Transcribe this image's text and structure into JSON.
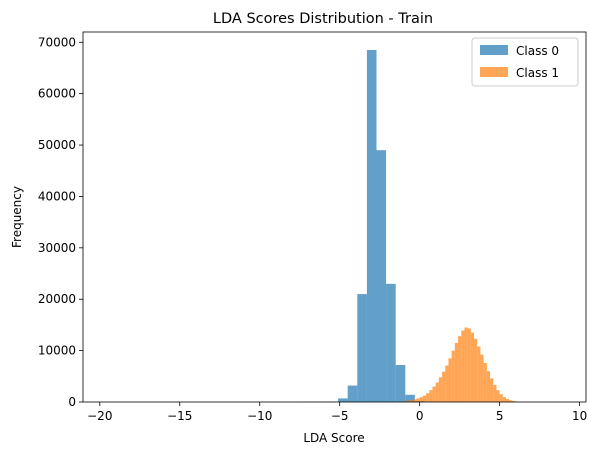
{
  "chart_data": {
    "type": "histogram",
    "title": "LDA Scores Distribution - Train",
    "xlabel": "LDA Score",
    "ylabel": "Frequency",
    "xlim": [
      -21.05,
      10.4
    ],
    "ylim": [
      0,
      72000
    ],
    "xticks": [
      -20,
      -15,
      -10,
      -5,
      0,
      5,
      10
    ],
    "yticks": [
      0,
      10000,
      20000,
      30000,
      40000,
      50000,
      60000,
      70000
    ],
    "legend_position": "top-right",
    "grid": false,
    "series": [
      {
        "name": "Class 0",
        "color": "#1f77b4",
        "alpha": 0.7,
        "bins": [
          {
            "x0": -20.0,
            "x1": -19.4,
            "count": 5
          },
          {
            "x0": -7.3,
            "x1": -5.1,
            "count": 60
          },
          {
            "x0": -5.1,
            "x1": -4.5,
            "count": 700
          },
          {
            "x0": -4.5,
            "x1": -3.9,
            "count": 3200
          },
          {
            "x0": -3.9,
            "x1": -3.3,
            "count": 21000
          },
          {
            "x0": -3.3,
            "x1": -2.7,
            "count": 68500
          },
          {
            "x0": -2.7,
            "x1": -2.1,
            "count": 49000
          },
          {
            "x0": -2.1,
            "x1": -1.5,
            "count": 23000
          },
          {
            "x0": -1.5,
            "x1": -0.9,
            "count": 7200
          },
          {
            "x0": -0.9,
            "x1": -0.3,
            "count": 1400
          },
          {
            "x0": -0.3,
            "x1": 0.3,
            "count": 200
          }
        ]
      },
      {
        "name": "Class 1",
        "color": "#ff7f0e",
        "alpha": 0.7,
        "bins": [
          {
            "x0": -1.6,
            "x1": -1.4,
            "count": 30
          },
          {
            "x0": -1.4,
            "x1": -1.2,
            "count": 60
          },
          {
            "x0": -1.2,
            "x1": -1.0,
            "count": 100
          },
          {
            "x0": -1.0,
            "x1": -0.8,
            "count": 170
          },
          {
            "x0": -0.8,
            "x1": -0.6,
            "count": 260
          },
          {
            "x0": -0.6,
            "x1": -0.4,
            "count": 380
          },
          {
            "x0": -0.4,
            "x1": -0.2,
            "count": 520
          },
          {
            "x0": -0.2,
            "x1": 0.0,
            "count": 700
          },
          {
            "x0": 0.0,
            "x1": 0.2,
            "count": 950
          },
          {
            "x0": 0.2,
            "x1": 0.4,
            "count": 1250
          },
          {
            "x0": 0.4,
            "x1": 0.6,
            "count": 1700
          },
          {
            "x0": 0.6,
            "x1": 0.8,
            "count": 2300
          },
          {
            "x0": 0.8,
            "x1": 1.0,
            "count": 3000
          },
          {
            "x0": 1.0,
            "x1": 1.2,
            "count": 3800
          },
          {
            "x0": 1.2,
            "x1": 1.4,
            "count": 4800
          },
          {
            "x0": 1.4,
            "x1": 1.6,
            "count": 5900
          },
          {
            "x0": 1.6,
            "x1": 1.8,
            "count": 7100
          },
          {
            "x0": 1.8,
            "x1": 2.0,
            "count": 8500
          },
          {
            "x0": 2.0,
            "x1": 2.2,
            "count": 10000
          },
          {
            "x0": 2.2,
            "x1": 2.4,
            "count": 11500
          },
          {
            "x0": 2.4,
            "x1": 2.6,
            "count": 12800
          },
          {
            "x0": 2.6,
            "x1": 2.8,
            "count": 13900
          },
          {
            "x0": 2.8,
            "x1": 3.0,
            "count": 14500
          },
          {
            "x0": 3.0,
            "x1": 3.2,
            "count": 14300
          },
          {
            "x0": 3.2,
            "x1": 3.4,
            "count": 13500
          },
          {
            "x0": 3.4,
            "x1": 3.6,
            "count": 12300
          },
          {
            "x0": 3.6,
            "x1": 3.8,
            "count": 10800
          },
          {
            "x0": 3.8,
            "x1": 4.0,
            "count": 9200
          },
          {
            "x0": 4.0,
            "x1": 4.2,
            "count": 7600
          },
          {
            "x0": 4.2,
            "x1": 4.4,
            "count": 6000
          },
          {
            "x0": 4.4,
            "x1": 4.6,
            "count": 4600
          },
          {
            "x0": 4.6,
            "x1": 4.8,
            "count": 3300
          },
          {
            "x0": 4.8,
            "x1": 5.0,
            "count": 2300
          },
          {
            "x0": 5.0,
            "x1": 5.2,
            "count": 1500
          },
          {
            "x0": 5.2,
            "x1": 5.4,
            "count": 950
          },
          {
            "x0": 5.4,
            "x1": 5.6,
            "count": 580
          },
          {
            "x0": 5.6,
            "x1": 5.8,
            "count": 330
          },
          {
            "x0": 5.8,
            "x1": 6.0,
            "count": 180
          },
          {
            "x0": 6.0,
            "x1": 6.2,
            "count": 90
          },
          {
            "x0": 6.2,
            "x1": 6.4,
            "count": 45
          }
        ]
      }
    ]
  }
}
